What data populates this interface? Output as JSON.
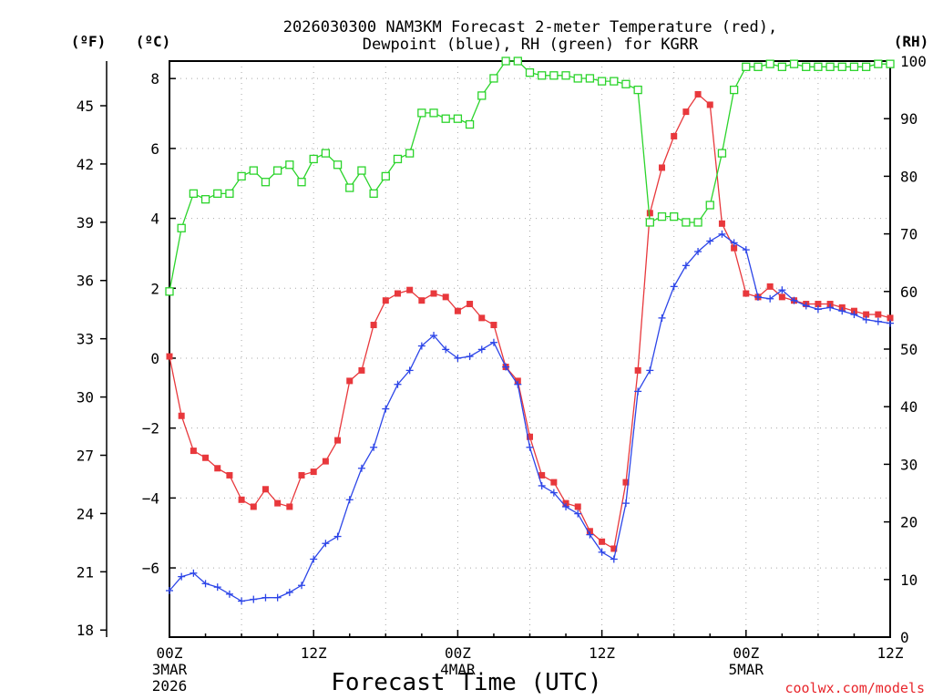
{
  "chart_data": {
    "type": "line",
    "title_line1": "2026030300 NAM3KM Forecast 2-meter Temperature (red),",
    "title_line2": "Dewpoint (blue), RH (green) for KGRR",
    "xlabel": "Forecast Time (UTC)",
    "credit": "coolwx.com/models",
    "units": {
      "fahrenheit": "(ºF)",
      "celsius": "(ºC)",
      "rh": "(RH)"
    },
    "x_hours_range": [
      0,
      60
    ],
    "ylim_celsius": [
      -7.98,
      8.5
    ],
    "rh_range": [
      0,
      100
    ],
    "grid": true,
    "ticks_x": [
      {
        "hour": 0,
        "label": "00Z",
        "date": "3MAR",
        "year": "2026"
      },
      {
        "hour": 12,
        "label": "12Z"
      },
      {
        "hour": 24,
        "label": "00Z",
        "date": "4MAR"
      },
      {
        "hour": 36,
        "label": "12Z"
      },
      {
        "hour": 48,
        "label": "00Z",
        "date": "5MAR"
      },
      {
        "hour": 60,
        "label": "12Z"
      }
    ],
    "ticks_celsius": [
      {
        "value": -6,
        "label": "−6"
      },
      {
        "value": -4,
        "label": "−4"
      },
      {
        "value": -2,
        "label": "−2"
      },
      {
        "value": 0,
        "label": "0"
      },
      {
        "value": 2,
        "label": "2"
      },
      {
        "value": 4,
        "label": "4"
      },
      {
        "value": 6,
        "label": "6"
      },
      {
        "value": 8,
        "label": "8"
      }
    ],
    "ticks_fahrenheit": [
      {
        "value": 18,
        "label": "18"
      },
      {
        "value": 21,
        "label": "21"
      },
      {
        "value": 24,
        "label": "24"
      },
      {
        "value": 27,
        "label": "27"
      },
      {
        "value": 30,
        "label": "30"
      },
      {
        "value": 33,
        "label": "33"
      },
      {
        "value": 36,
        "label": "36"
      },
      {
        "value": 39,
        "label": "39"
      },
      {
        "value": 42,
        "label": "42"
      },
      {
        "value": 45,
        "label": "45"
      }
    ],
    "ticks_rh": [
      {
        "value": 0,
        "label": "0"
      },
      {
        "value": 10,
        "label": "10"
      },
      {
        "value": 20,
        "label": "20"
      },
      {
        "value": 30,
        "label": "30"
      },
      {
        "value": 40,
        "label": "40"
      },
      {
        "value": 50,
        "label": "50"
      },
      {
        "value": 60,
        "label": "60"
      },
      {
        "value": 70,
        "label": "70"
      },
      {
        "value": 80,
        "label": "80"
      },
      {
        "value": 90,
        "label": "90"
      },
      {
        "value": 100,
        "label": "100"
      }
    ],
    "colors": {
      "temperature": "#e8383c",
      "dewpoint": "#2c45e8",
      "rh": "#2bd42b",
      "grid": "#a8a8a8",
      "axis": "#000000",
      "credit": "#e8252b"
    },
    "series": [
      {
        "name": "Temperature",
        "unit": "C",
        "marker": "filled-square",
        "x": [
          0,
          1,
          2,
          3,
          4,
          5,
          6,
          7,
          8,
          9,
          10,
          11,
          12,
          13,
          14,
          15,
          16,
          17,
          18,
          19,
          20,
          21,
          22,
          23,
          24,
          25,
          26,
          27,
          28,
          29,
          30,
          31,
          32,
          33,
          34,
          35,
          36,
          37,
          38,
          39,
          40,
          41,
          42,
          43,
          44,
          45,
          46,
          47,
          48,
          49,
          50,
          51,
          52,
          53,
          54,
          55,
          56,
          57,
          58,
          59,
          60
        ],
        "values": [
          0.05,
          -1.65,
          -2.65,
          -2.85,
          -3.15,
          -3.35,
          -4.05,
          -4.25,
          -3.75,
          -4.15,
          -4.25,
          -3.35,
          -3.25,
          -2.95,
          -2.35,
          -0.65,
          -0.35,
          0.95,
          1.65,
          1.85,
          1.95,
          1.65,
          1.85,
          1.75,
          1.35,
          1.55,
          1.15,
          0.95,
          -0.25,
          -0.65,
          -2.25,
          -3.35,
          -3.55,
          -4.15,
          -4.25,
          -4.95,
          -5.25,
          -5.45,
          -3.55,
          -0.35,
          4.15,
          5.45,
          6.35,
          7.05,
          7.55,
          7.25,
          3.85,
          3.15,
          1.85,
          1.75,
          2.05,
          1.75,
          1.65,
          1.55,
          1.55,
          1.55,
          1.45,
          1.35,
          1.25,
          1.25,
          1.15
        ]
      },
      {
        "name": "Dewpoint",
        "unit": "C",
        "marker": "plus",
        "x": [
          0,
          1,
          2,
          3,
          4,
          5,
          6,
          7,
          8,
          9,
          10,
          11,
          12,
          13,
          14,
          15,
          16,
          17,
          18,
          19,
          20,
          21,
          22,
          23,
          24,
          25,
          26,
          27,
          28,
          29,
          30,
          31,
          32,
          33,
          34,
          35,
          36,
          37,
          38,
          39,
          40,
          41,
          42,
          43,
          44,
          45,
          46,
          47,
          48,
          49,
          50,
          51,
          52,
          53,
          54,
          55,
          56,
          57,
          58,
          59,
          60
        ],
        "values": [
          -6.65,
          -6.25,
          -6.15,
          -6.45,
          -6.55,
          -6.75,
          -6.95,
          -6.9,
          -6.85,
          -6.85,
          -6.7,
          -6.5,
          -5.75,
          -5.3,
          -5.1,
          -4.05,
          -3.15,
          -2.55,
          -1.45,
          -0.75,
          -0.35,
          0.35,
          0.65,
          0.25,
          0.0,
          0.05,
          0.25,
          0.45,
          -0.25,
          -0.75,
          -2.55,
          -3.65,
          -3.85,
          -4.25,
          -4.45,
          -5.05,
          -5.55,
          -5.75,
          -4.15,
          -0.95,
          -0.35,
          1.15,
          2.05,
          2.65,
          3.05,
          3.35,
          3.55,
          3.3,
          3.1,
          1.75,
          1.7,
          1.95,
          1.65,
          1.5,
          1.4,
          1.45,
          1.35,
          1.25,
          1.1,
          1.05,
          1.0
        ]
      },
      {
        "name": "RH",
        "unit": "%",
        "marker": "open-square",
        "x": [
          0,
          1,
          2,
          3,
          4,
          5,
          6,
          7,
          8,
          9,
          10,
          11,
          12,
          13,
          14,
          15,
          16,
          17,
          18,
          19,
          20,
          21,
          22,
          23,
          24,
          25,
          26,
          27,
          28,
          29,
          30,
          31,
          32,
          33,
          34,
          35,
          36,
          37,
          38,
          39,
          40,
          41,
          42,
          43,
          44,
          45,
          46,
          47,
          48,
          49,
          50,
          51,
          52,
          53,
          54,
          55,
          56,
          57,
          58,
          59,
          60
        ],
        "values": [
          60,
          71,
          77,
          76,
          77,
          77,
          80,
          81,
          79,
          81,
          82,
          79,
          83,
          84,
          82,
          78,
          81,
          77,
          80,
          83,
          84,
          91,
          91,
          90,
          90,
          89,
          94,
          97,
          100,
          100,
          98,
          97.5,
          97.5,
          97.5,
          97,
          97,
          96.5,
          96.5,
          96,
          95,
          72,
          73,
          73,
          72,
          72,
          75,
          84,
          95,
          99,
          99,
          99.5,
          99,
          99.5,
          99,
          99,
          99,
          99,
          99,
          99,
          99.5,
          99.5
        ]
      }
    ]
  }
}
